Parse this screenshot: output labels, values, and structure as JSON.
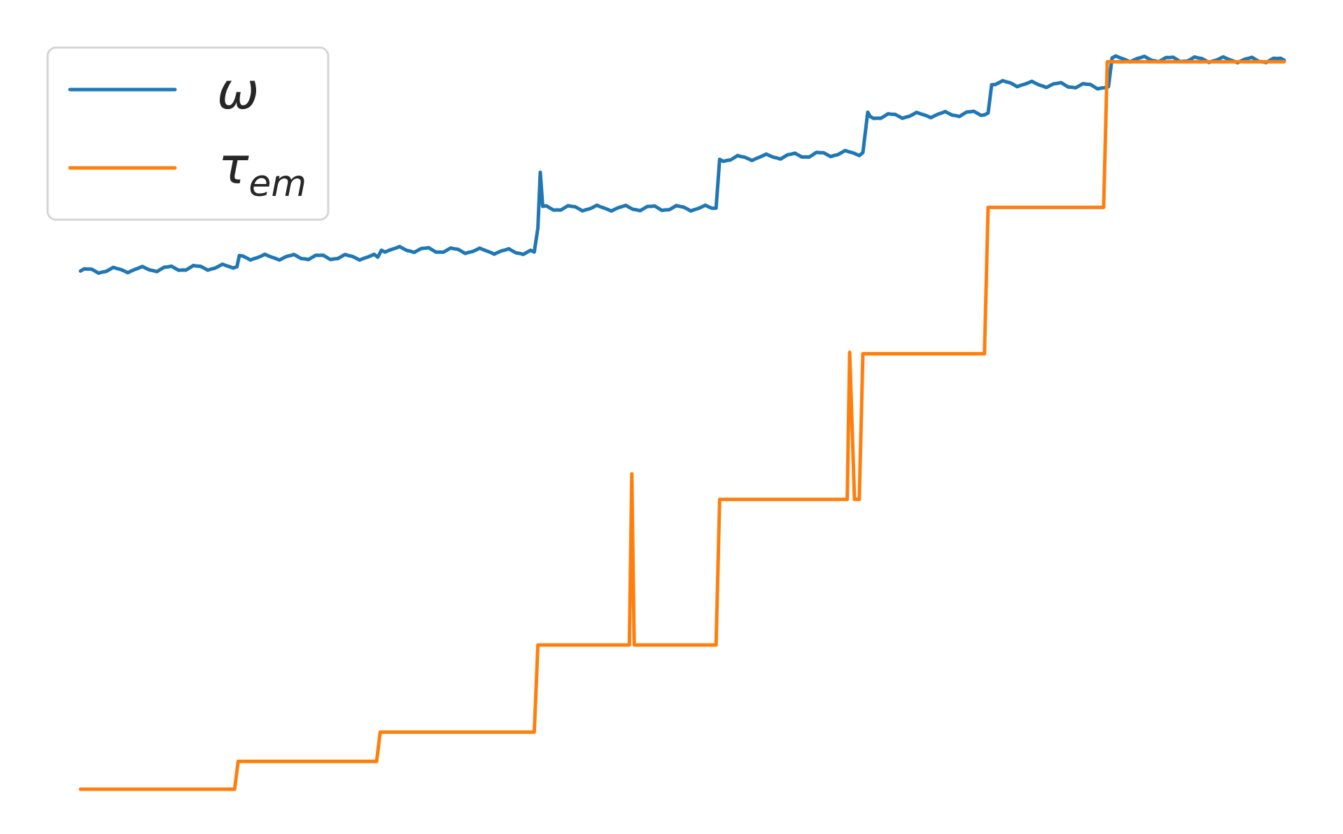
{
  "chart_data": {
    "type": "line",
    "title": "",
    "xlabel": "",
    "ylabel": "",
    "grid": false,
    "axes_visible": false,
    "legend_position": "top-left",
    "xlim": [
      0,
      1
    ],
    "ylim": [
      0,
      1
    ],
    "series": [
      {
        "name": "ω",
        "label_main": "ω",
        "label_sub": "",
        "color": "#1f77b4",
        "noise": 0.004,
        "points": [
          [
            0.0,
            0.708
          ],
          [
            0.13,
            0.714
          ],
          [
            0.132,
            0.727
          ],
          [
            0.247,
            0.727
          ],
          [
            0.25,
            0.738
          ],
          [
            0.377,
            0.734
          ],
          [
            0.38,
            0.767
          ],
          [
            0.382,
            0.843
          ],
          [
            0.384,
            0.794
          ],
          [
            0.528,
            0.794
          ],
          [
            0.531,
            0.861
          ],
          [
            0.65,
            0.87
          ],
          [
            0.654,
            0.925
          ],
          [
            0.656,
            0.919
          ],
          [
            0.754,
            0.924
          ],
          [
            0.757,
            0.965
          ],
          [
            0.854,
            0.96
          ],
          [
            0.857,
            0.998
          ],
          [
            1.0,
            0.996
          ]
        ]
      },
      {
        "name": "τ_em",
        "label_main": "τ",
        "label_sub": "em",
        "color": "#ff7f0e",
        "noise": 0,
        "points": [
          [
            0.0,
            0.0
          ],
          [
            0.128,
            0.0
          ],
          [
            0.131,
            0.038
          ],
          [
            0.246,
            0.038
          ],
          [
            0.249,
            0.078
          ],
          [
            0.377,
            0.078
          ],
          [
            0.38,
            0.197
          ],
          [
            0.456,
            0.197
          ],
          [
            0.458,
            0.431
          ],
          [
            0.46,
            0.197
          ],
          [
            0.528,
            0.197
          ],
          [
            0.531,
            0.396
          ],
          [
            0.637,
            0.396
          ],
          [
            0.639,
            0.597
          ],
          [
            0.643,
            0.396
          ],
          [
            0.647,
            0.396
          ],
          [
            0.65,
            0.595
          ],
          [
            0.751,
            0.595
          ],
          [
            0.754,
            0.795
          ],
          [
            0.85,
            0.795
          ],
          [
            0.853,
            0.994
          ],
          [
            1.0,
            0.994
          ]
        ]
      }
    ]
  }
}
